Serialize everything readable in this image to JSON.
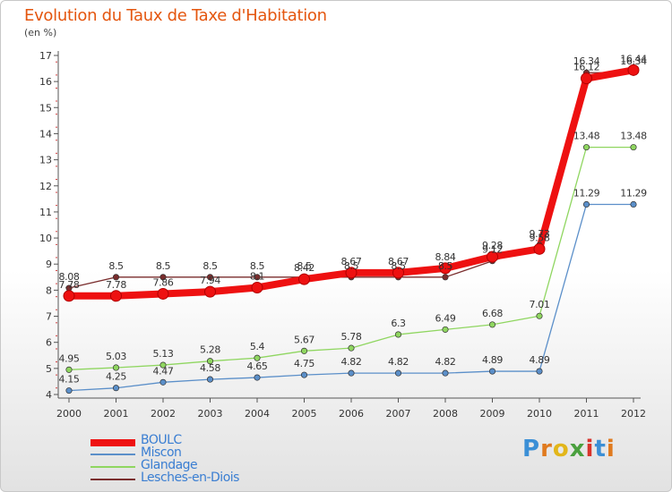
{
  "title": "Evolution du Taux de Taxe d'Habitation",
  "subtitle": "(en %)",
  "logo": {
    "text": "Proxiti",
    "letter_colors": [
      "#3b8fd6",
      "#e07a1e",
      "#e2b61a",
      "#4aa03e",
      "#d8342c",
      "#3b8fd6",
      "#e07a1e"
    ]
  },
  "colors": {
    "axis": "#555555",
    "gridline": "#bbbbbb",
    "tick_mark": "#d04040"
  },
  "chart_data": {
    "type": "line",
    "x": [
      2000,
      2001,
      2002,
      2003,
      2004,
      2005,
      2006,
      2007,
      2008,
      2009,
      2010,
      2011,
      2012
    ],
    "ylim": [
      4,
      17
    ],
    "yticks": [
      4,
      5,
      6,
      7,
      8,
      9,
      10,
      11,
      12,
      13,
      14,
      15,
      16,
      17
    ],
    "grid": false,
    "legend_position": "bottom-left",
    "series": [
      {
        "name": "BOULC",
        "color": "#ee1111",
        "values": [
          7.78,
          7.78,
          7.86,
          7.94,
          8.1,
          8.42,
          8.67,
          8.67,
          8.84,
          9.28,
          9.58,
          16.12,
          16.44
        ],
        "labels": [
          "7.78",
          "7.78",
          "7.86",
          "7.94",
          "8.1",
          "8.42",
          "8.67",
          "8.67",
          "8.84",
          "9.28",
          "9.58",
          "16.12",
          "16.44"
        ]
      },
      {
        "name": "Miscon",
        "color": "#5b8fc9",
        "values": [
          4.15,
          4.25,
          4.47,
          4.58,
          4.65,
          4.75,
          4.82,
          4.82,
          4.82,
          4.89,
          4.89,
          11.29,
          11.29
        ],
        "labels": [
          "4.15",
          "4.25",
          "4.47",
          "4.58",
          "4.65",
          "4.75",
          "4.82",
          "4.82",
          "4.82",
          "4.89",
          "4.89",
          "11.29",
          "11.29"
        ]
      },
      {
        "name": "Glandage",
        "color": "#8fd660",
        "values": [
          4.95,
          5.03,
          5.13,
          5.28,
          5.4,
          5.67,
          5.78,
          6.3,
          6.49,
          6.68,
          7.01,
          13.48,
          13.48
        ],
        "labels": [
          "4.95",
          "5.03",
          "5.13",
          "5.28",
          "5.4",
          "5.67",
          "5.78",
          "6.3",
          "6.49",
          "6.68",
          "7.01",
          "13.48",
          "13.48"
        ]
      },
      {
        "name": "Lesches-en-Diois",
        "color": "#7a2d2d",
        "values": [
          8.08,
          8.5,
          8.5,
          8.5,
          8.5,
          8.5,
          8.5,
          8.5,
          8.5,
          9.12,
          9.73,
          16.34,
          16.34
        ],
        "labels": [
          "8.08",
          "8.5",
          "8.5",
          "8.5",
          "8.5",
          "8.5",
          "8.5",
          "8.5",
          "8.5",
          "9.12",
          "9.73",
          "16.34",
          "16.34"
        ]
      }
    ]
  }
}
